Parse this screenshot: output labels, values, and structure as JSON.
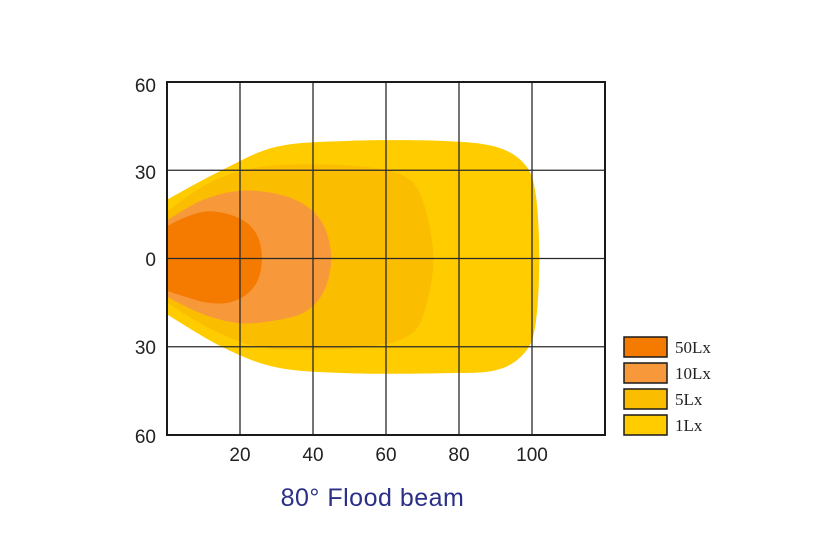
{
  "chart_data": {
    "type": "contour",
    "title": "80° Flood beam",
    "xlabel": "",
    "ylabel": "",
    "xlim": [
      0,
      120
    ],
    "ylim": [
      -60,
      60
    ],
    "x_ticks": [
      "20",
      "40",
      "60",
      "80",
      "100"
    ],
    "y_ticks": [
      "60",
      "30",
      "0",
      "30",
      "60"
    ],
    "grid": true,
    "legend_position": "right",
    "series": [
      {
        "name": "1Lx",
        "color": "#ffcc00",
        "max_x": 102,
        "half_width": 40,
        "outline": [
          [
            0,
            20
          ],
          [
            15,
            30
          ],
          [
            30,
            38
          ],
          [
            50,
            40
          ],
          [
            75,
            40
          ],
          [
            90,
            38
          ],
          [
            98,
            32
          ],
          [
            101,
            22
          ],
          [
            102,
            0
          ],
          [
            101,
            -22
          ],
          [
            98,
            -32
          ],
          [
            90,
            -38
          ],
          [
            75,
            -39
          ],
          [
            50,
            -39
          ],
          [
            30,
            -37
          ],
          [
            15,
            -30
          ],
          [
            0,
            -19
          ]
        ]
      },
      {
        "name": "5Lx",
        "color": "#fbbd00",
        "max_x": 73,
        "half_width": 32,
        "outline": [
          [
            0,
            16
          ],
          [
            12,
            26
          ],
          [
            25,
            31
          ],
          [
            40,
            32
          ],
          [
            55,
            31
          ],
          [
            65,
            28
          ],
          [
            70,
            20
          ],
          [
            73,
            0
          ],
          [
            70,
            -20
          ],
          [
            65,
            -27
          ],
          [
            55,
            -30
          ],
          [
            40,
            -31
          ],
          [
            25,
            -30
          ],
          [
            12,
            -24
          ],
          [
            0,
            -15
          ]
        ]
      },
      {
        "name": "10Lx",
        "color": "#f7983b",
        "max_x": 45,
        "half_width": 23,
        "outline": [
          [
            0,
            13
          ],
          [
            10,
            20
          ],
          [
            20,
            23
          ],
          [
            30,
            22
          ],
          [
            38,
            18
          ],
          [
            43,
            11
          ],
          [
            45,
            0
          ],
          [
            43,
            -11
          ],
          [
            38,
            -18
          ],
          [
            30,
            -21
          ],
          [
            20,
            -22
          ],
          [
            10,
            -19
          ],
          [
            0,
            -13
          ]
        ]
      },
      {
        "name": "50Lx",
        "color": "#f57a00",
        "max_x": 26,
        "half_width": 16,
        "outline": [
          [
            0,
            11
          ],
          [
            5,
            14
          ],
          [
            11,
            16
          ],
          [
            17,
            15
          ],
          [
            22,
            12
          ],
          [
            25,
            7
          ],
          [
            26,
            0
          ],
          [
            25,
            -7
          ],
          [
            22,
            -12
          ],
          [
            17,
            -15
          ],
          [
            11,
            -15
          ],
          [
            5,
            -13
          ],
          [
            0,
            -11
          ]
        ]
      }
    ]
  },
  "legend": [
    {
      "label": "50Lx",
      "color": "#f57a00"
    },
    {
      "label": "10Lx",
      "color": "#f7983b"
    },
    {
      "label": "5Lx",
      "color": "#fbbd00"
    },
    {
      "label": "1Lx",
      "color": "#ffcc00"
    }
  ],
  "caption": "80° Flood beam"
}
